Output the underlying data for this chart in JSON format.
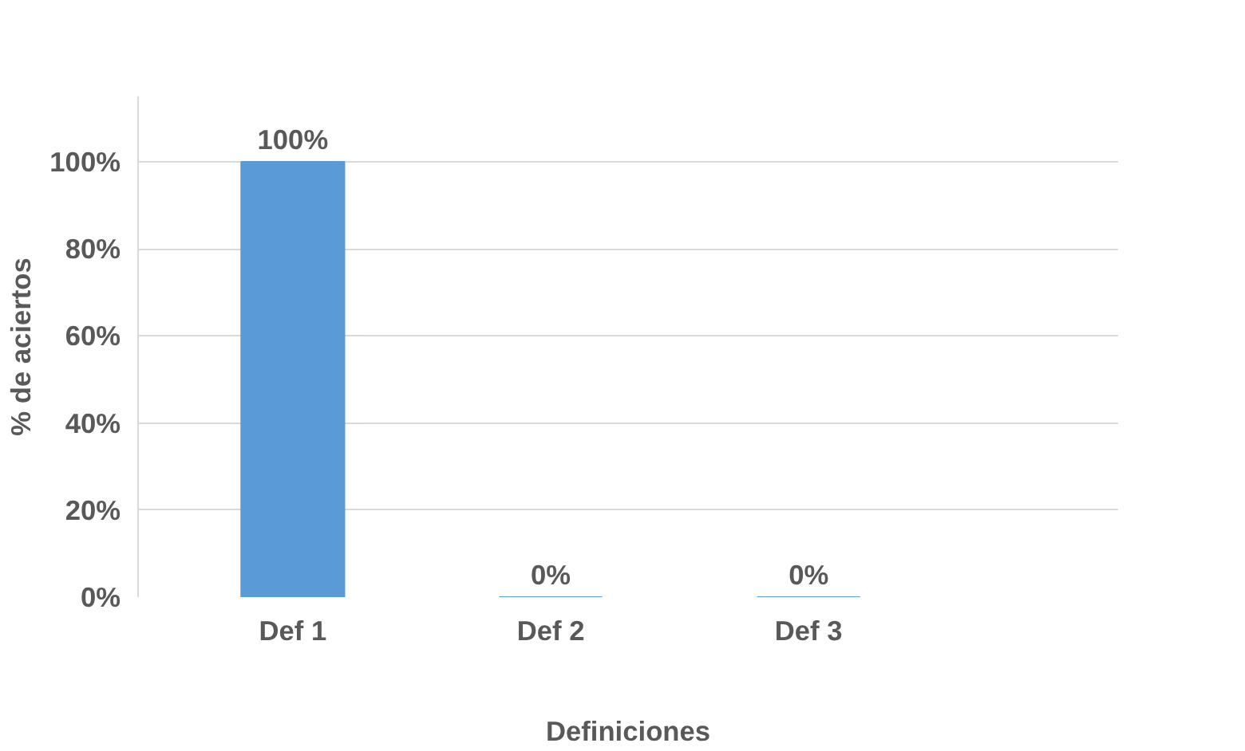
{
  "chart_data": {
    "type": "bar",
    "xlabel": "Definiciones",
    "ylabel": "% de aciertos",
    "categories": [
      "Def 1",
      "Def 2",
      "Def 3"
    ],
    "values": [
      100,
      0,
      0
    ],
    "color": "#5b9bd5",
    "value_labels": [
      "100%",
      "0%",
      "0%"
    ],
    "ylim": [
      0,
      115
    ],
    "yticks": [
      {
        "value": 0,
        "label": "0%"
      },
      {
        "value": 20,
        "label": "20%"
      },
      {
        "value": 40,
        "label": "40%"
      },
      {
        "value": 60,
        "label": "60%"
      },
      {
        "value": 80,
        "label": "80%"
      },
      {
        "value": 100,
        "label": "100%"
      }
    ],
    "grid": "y"
  }
}
